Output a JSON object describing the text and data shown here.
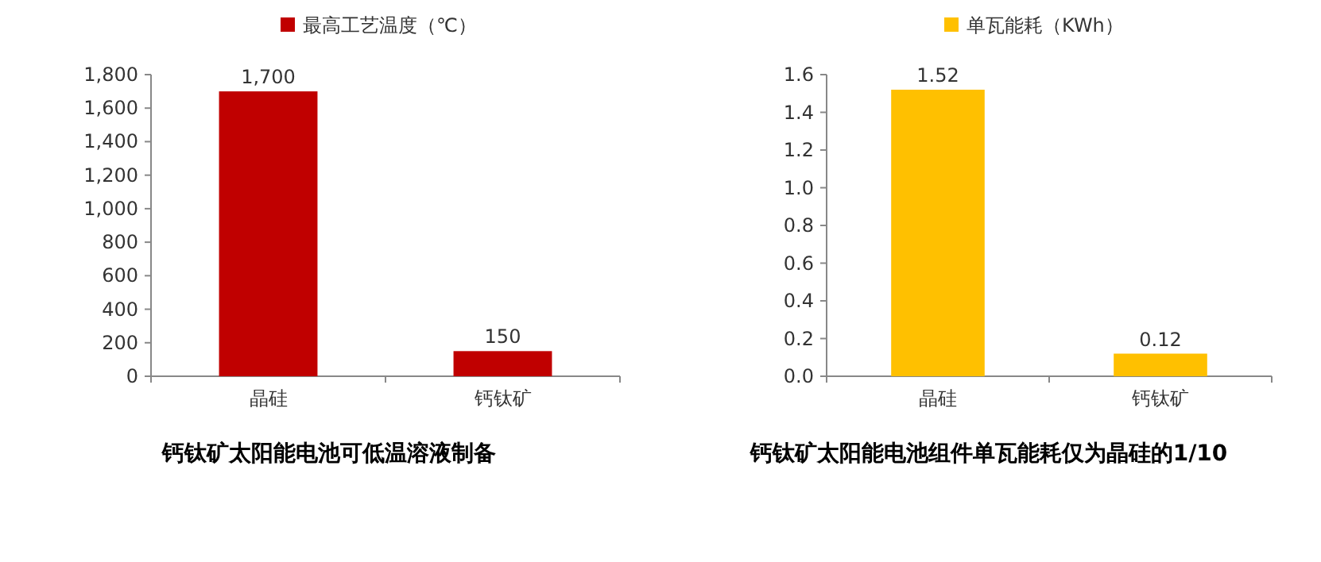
{
  "chart_data": [
    {
      "type": "bar",
      "title": "钙钛矿太阳能电池可低温溶液制备",
      "categories": [
        "晶硅",
        "钙钛矿"
      ],
      "series": [
        {
          "name": "最高工艺温度（℃）",
          "color": "#c00000",
          "values": [
            1700,
            150
          ],
          "value_labels": [
            "1,700",
            "150"
          ]
        }
      ],
      "ylim": [
        0,
        1800
      ],
      "yticks": [
        0,
        200,
        400,
        600,
        800,
        {
          "value": 1000,
          "label": "1,000"
        },
        {
          "value": 1200,
          "label": "1,200"
        },
        {
          "value": 1400,
          "label": "1,400"
        },
        {
          "value": 1600,
          "label": "1,600"
        },
        {
          "value": 1800,
          "label": "1,800"
        }
      ],
      "legend": "top",
      "grid": false
    },
    {
      "type": "bar",
      "title": "钙钛矿太阳能电池组件单瓦能耗仅为晶硅的1/10",
      "categories": [
        "晶硅",
        "钙钛矿"
      ],
      "series": [
        {
          "name": "单瓦能耗（KWh）",
          "color": "#ffc000",
          "values": [
            1.52,
            0.12
          ]
        }
      ],
      "ylim": [
        0,
        1.6
      ],
      "yticks": [
        {
          "value": 0,
          "label": "0.0"
        },
        0.2,
        0.4,
        0.6,
        0.8,
        {
          "value": 1,
          "label": "1.0"
        },
        1.2,
        1.4,
        1.6
      ],
      "data_labels": true,
      "legend": "top",
      "grid": false
    }
  ]
}
